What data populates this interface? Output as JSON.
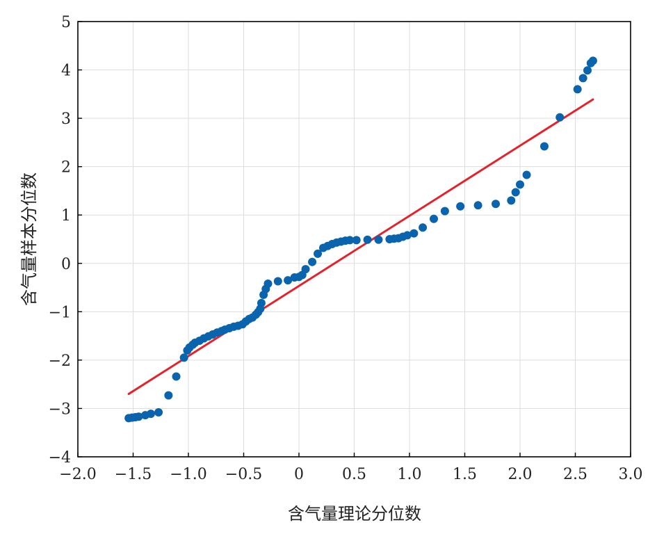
{
  "chart_data": {
    "type": "scatter",
    "xlabel": "含气量理论分位数",
    "ylabel": "含气量样本分位数",
    "xlim": [
      -2.0,
      3.0
    ],
    "ylim": [
      -4,
      5
    ],
    "x_ticks": [
      -2.0,
      -1.5,
      -1.0,
      -0.5,
      0,
      0.5,
      1.0,
      1.5,
      2.0,
      2.5,
      3.0
    ],
    "x_tick_labels": [
      "−2.0",
      "−1.5",
      "−1.0",
      "−0.5",
      "0",
      "0.5",
      "1.0",
      "1.5",
      "2.0",
      "2.5",
      "3.0"
    ],
    "y_ticks": [
      -4,
      -3,
      -2,
      -1,
      0,
      1,
      2,
      3,
      4,
      5
    ],
    "y_tick_labels": [
      "−4",
      "−3",
      "−2",
      "−1",
      "0",
      "1",
      "2",
      "3",
      "4",
      "5"
    ],
    "grid": true,
    "colors": {
      "points": "#0a64ad",
      "line": "#e3222a",
      "grid": "#dddddd",
      "axis": "#000000"
    },
    "points": [
      [
        -1.54,
        -3.2
      ],
      [
        -1.51,
        -3.19
      ],
      [
        -1.48,
        -3.18
      ],
      [
        -1.45,
        -3.17
      ],
      [
        -1.39,
        -3.14
      ],
      [
        -1.34,
        -3.11
      ],
      [
        -1.27,
        -3.08
      ],
      [
        -1.18,
        -2.73
      ],
      [
        -1.11,
        -2.34
      ],
      [
        -1.04,
        -1.95
      ],
      [
        -1.01,
        -1.8
      ],
      [
        -0.99,
        -1.74
      ],
      [
        -0.96,
        -1.68
      ],
      [
        -0.94,
        -1.64
      ],
      [
        -0.9,
        -1.6
      ],
      [
        -0.86,
        -1.55
      ],
      [
        -0.82,
        -1.51
      ],
      [
        -0.78,
        -1.47
      ],
      [
        -0.74,
        -1.43
      ],
      [
        -0.7,
        -1.4
      ],
      [
        -0.67,
        -1.37
      ],
      [
        -0.63,
        -1.34
      ],
      [
        -0.59,
        -1.31
      ],
      [
        -0.55,
        -1.29
      ],
      [
        -0.51,
        -1.26
      ],
      [
        -0.48,
        -1.2
      ],
      [
        -0.45,
        -1.15
      ],
      [
        -0.42,
        -1.12
      ],
      [
        -0.39,
        -1.06
      ],
      [
        -0.37,
        -1.01
      ],
      [
        -0.35,
        -0.94
      ],
      [
        -0.34,
        -0.82
      ],
      [
        -0.32,
        -0.65
      ],
      [
        -0.3,
        -0.53
      ],
      [
        -0.28,
        -0.42
      ],
      [
        -0.19,
        -0.37
      ],
      [
        -0.1,
        -0.35
      ],
      [
        -0.04,
        -0.29
      ],
      [
        0.0,
        -0.28
      ],
      [
        0.03,
        -0.24
      ],
      [
        0.06,
        -0.12
      ],
      [
        0.12,
        0.03
      ],
      [
        0.17,
        0.2
      ],
      [
        0.22,
        0.32
      ],
      [
        0.26,
        0.36
      ],
      [
        0.3,
        0.4
      ],
      [
        0.34,
        0.43
      ],
      [
        0.38,
        0.45
      ],
      [
        0.42,
        0.47
      ],
      [
        0.46,
        0.48
      ],
      [
        0.52,
        0.48
      ],
      [
        0.62,
        0.49
      ],
      [
        0.72,
        0.49
      ],
      [
        0.82,
        0.5
      ],
      [
        0.86,
        0.51
      ],
      [
        0.9,
        0.52
      ],
      [
        0.94,
        0.55
      ],
      [
        0.98,
        0.58
      ],
      [
        1.04,
        0.62
      ],
      [
        1.12,
        0.74
      ],
      [
        1.22,
        0.92
      ],
      [
        1.32,
        1.08
      ],
      [
        1.46,
        1.18
      ],
      [
        1.62,
        1.2
      ],
      [
        1.78,
        1.23
      ],
      [
        1.92,
        1.3
      ],
      [
        1.96,
        1.47
      ],
      [
        2.0,
        1.63
      ],
      [
        2.06,
        1.83
      ],
      [
        2.22,
        2.42
      ],
      [
        2.36,
        3.02
      ],
      [
        2.52,
        3.6
      ],
      [
        2.57,
        3.83
      ],
      [
        2.61,
        3.99
      ],
      [
        2.64,
        4.14
      ],
      [
        2.66,
        4.19
      ]
    ],
    "fit_line": {
      "x": [
        -1.54,
        2.66
      ],
      "y": [
        -2.7,
        3.39
      ]
    }
  }
}
